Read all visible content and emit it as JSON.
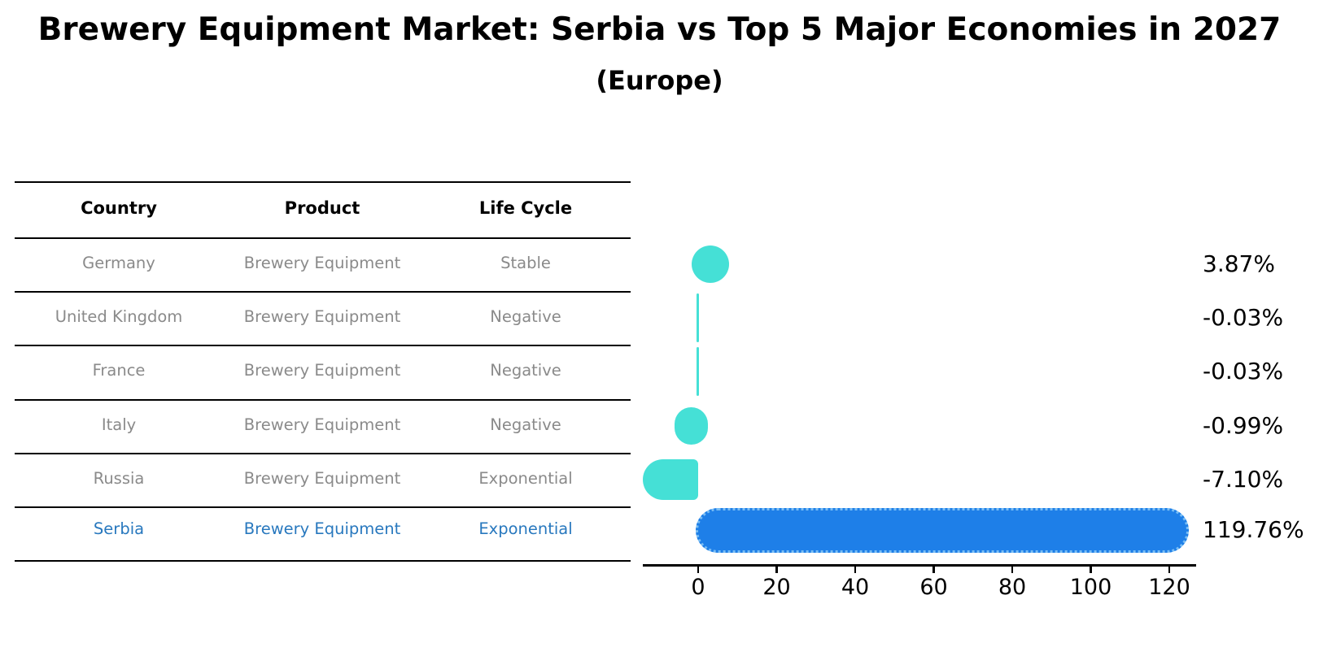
{
  "header": {
    "title": "Brewery Equipment Market: Serbia vs Top 5 Major Economies in 2027",
    "subtitle": "(Europe)"
  },
  "table": {
    "columns": [
      "Country",
      "Product",
      "Life Cycle"
    ],
    "rows": [
      {
        "country": "Germany",
        "product": "Brewery Equipment",
        "life_cycle": "Stable",
        "highlight": false
      },
      {
        "country": "United Kingdom",
        "product": "Brewery Equipment",
        "life_cycle": "Negative",
        "highlight": false
      },
      {
        "country": "France",
        "product": "Brewery Equipment",
        "life_cycle": "Negative",
        "highlight": false
      },
      {
        "country": "Italy",
        "product": "Brewery Equipment",
        "life_cycle": "Negative",
        "highlight": false
      },
      {
        "country": "Russia",
        "product": "Brewery Equipment",
        "life_cycle": "Exponential",
        "highlight": true
      }
    ]
  },
  "chart_data": {
    "type": "bar",
    "orientation": "horizontal",
    "title": "",
    "xlabel": "",
    "ylabel": "",
    "categories": [
      "Germany",
      "United Kingdom",
      "France",
      "Italy",
      "Russia",
      "Serbia"
    ],
    "values": [
      3.87,
      -0.03,
      -0.03,
      -0.99,
      -7.1,
      119.76
    ],
    "value_labels": [
      "3.87%",
      "-0.03%",
      "-0.03%",
      "-0.99%",
      "-7.10%",
      "119.76%"
    ],
    "x_ticks": [
      0,
      20,
      40,
      60,
      80,
      100,
      120
    ],
    "xlim": [
      -14,
      127
    ],
    "grid": false,
    "legend": null,
    "highlight_index": 5,
    "colors": {
      "bar_default": "#45e0d6",
      "bar_highlight": "#1e7fe8",
      "highlight_text": "#2878be"
    }
  }
}
